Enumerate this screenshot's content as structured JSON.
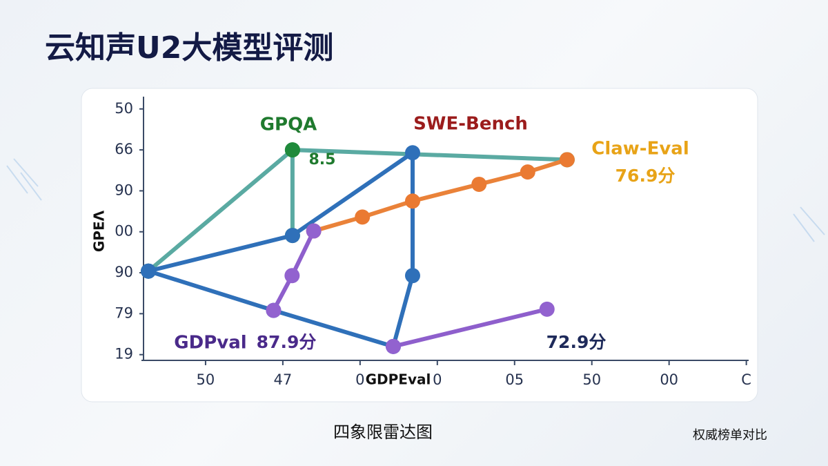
{
  "chart_data": {
    "type": "line",
    "title": "云知声U2大模型评测",
    "subtitle": "四象限雷达图",
    "footnote": "权威榜单对比",
    "x_label": "GDPEval",
    "y_label": "GPEΛ",
    "xlim": [
      -0.83,
      7.03
    ],
    "ylim": [
      -0.14,
      6.3
    ],
    "xticks": [
      {
        "value": 0,
        "label": "50"
      },
      {
        "value": 1,
        "label": "47"
      },
      {
        "value": 2,
        "label": "0"
      },
      {
        "value": 3,
        "label": "0"
      },
      {
        "value": 4,
        "label": "05"
      },
      {
        "value": 5,
        "label": "50"
      },
      {
        "value": 6,
        "label": "00"
      },
      {
        "value": 7,
        "label": "C"
      }
    ],
    "yticks": [
      {
        "value": 0,
        "label": "19"
      },
      {
        "value": 1,
        "label": "79"
      },
      {
        "value": 2,
        "label": "90"
      },
      {
        "value": 3,
        "label": "00"
      },
      {
        "value": 4,
        "label": "90"
      },
      {
        "value": 5,
        "label": "66"
      },
      {
        "value": 6,
        "label": "50"
      }
    ],
    "series": [
      {
        "name": "GPQA",
        "color": "#5aaaa2",
        "marker_color": "#1f8a3b",
        "label_color": "#1f7a2e",
        "x": [
          -0.74,
          1.125,
          1.125,
          null,
          1.125,
          4.68
        ],
        "values": [
          2.04,
          5.0,
          2.91,
          null,
          5.0,
          4.76
        ]
      },
      {
        "name": "SWE-Bench",
        "color": "#2f70b9",
        "marker_color": "#2f70b9",
        "label_color": "#9b1c1c",
        "x": [
          -0.74,
          1.125,
          2.68,
          2.68,
          2.43,
          0.88,
          -0.74
        ],
        "values": [
          2.04,
          2.91,
          4.93,
          1.93,
          0.2,
          1.08,
          2.04
        ]
      },
      {
        "name": "Claw-Eval",
        "color": "#ea8239",
        "marker_color": "#ea7a32",
        "label_color": "#e8a317",
        "x": [
          1.4,
          2.03,
          2.68,
          3.54,
          4.17,
          4.68
        ],
        "values": [
          3.02,
          3.36,
          3.75,
          4.16,
          4.46,
          4.76
        ]
      },
      {
        "name": "GDPval",
        "color": "#8e5fcc",
        "marker_color": "#9262cf",
        "label_color": "#4a2a8a",
        "x": [
          1.4,
          1.12,
          0.88,
          null,
          2.43,
          4.42
        ],
        "values": [
          3.02,
          1.93,
          1.08,
          null,
          0.2,
          1.11
        ]
      }
    ],
    "annotations": [
      {
        "text": "8.5",
        "color": "#1f7a2e"
      },
      {
        "text": "76.9分",
        "color": "#e8a317"
      },
      {
        "text": "87.9分",
        "color": "#4a2a8a"
      },
      {
        "text": "72.9分",
        "color": "#1e2a5a"
      }
    ]
  }
}
